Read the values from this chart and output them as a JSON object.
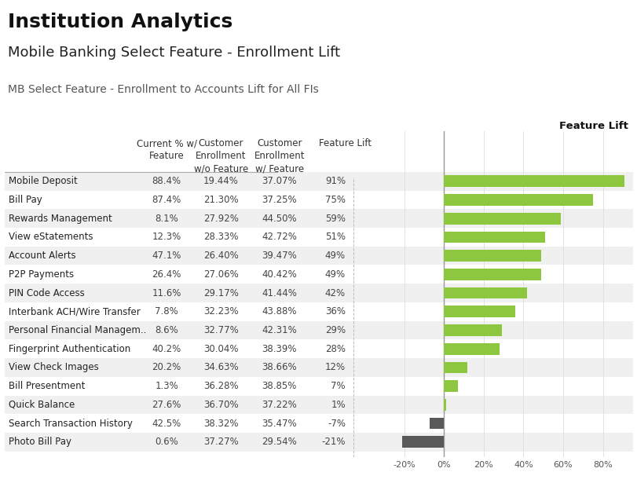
{
  "title": "Institution Analytics",
  "subtitle": "Mobile Banking Select Feature - Enrollment Lift",
  "section_label": "MB Select Feature - Enrollment to Accounts Lift for All FIs",
  "col_headers": [
    "Current % w/\nFeature",
    "Customer\nEnrollment\nw/o Feature",
    "Customer\nEnrollment\nw/ Feature",
    "Feature Lift"
  ],
  "features": [
    "Mobile Deposit",
    "Bill Pay",
    "Rewards Management",
    "View eStatements",
    "Account Alerts",
    "P2P Payments",
    "PIN Code Access",
    "Interbank ACH/Wire Transfer",
    "Personal Financial Managem..",
    "Fingerprint Authentication",
    "View Check Images",
    "Bill Presentment",
    "Quick Balance",
    "Search Transaction History",
    "Photo Bill Pay"
  ],
  "current_pct": [
    "88.4%",
    "87.4%",
    "8.1%",
    "12.3%",
    "47.1%",
    "26.4%",
    "11.6%",
    "7.8%",
    "8.6%",
    "40.2%",
    "20.2%",
    "1.3%",
    "27.6%",
    "42.5%",
    "0.6%"
  ],
  "enroll_without": [
    "19.44%",
    "21.30%",
    "27.92%",
    "28.33%",
    "26.40%",
    "27.06%",
    "29.17%",
    "32.23%",
    "32.77%",
    "30.04%",
    "34.63%",
    "36.28%",
    "36.70%",
    "38.32%",
    "37.27%"
  ],
  "enroll_with": [
    "37.07%",
    "37.25%",
    "44.50%",
    "42.72%",
    "39.47%",
    "40.42%",
    "41.44%",
    "43.88%",
    "42.31%",
    "38.39%",
    "38.66%",
    "38.85%",
    "37.22%",
    "35.47%",
    "29.54%"
  ],
  "feature_lift_labels": [
    "91%",
    "75%",
    "59%",
    "51%",
    "49%",
    "49%",
    "42%",
    "36%",
    "29%",
    "28%",
    "12%",
    "7%",
    "1%",
    "-7%",
    "-21%"
  ],
  "feature_lift_values": [
    91,
    75,
    59,
    51,
    49,
    49,
    42,
    36,
    29,
    28,
    12,
    7,
    1,
    -7,
    -21
  ],
  "bar_color_positive": "#8dc63f",
  "bar_color_negative": "#595959",
  "xlim": [
    -25,
    95
  ],
  "xticks": [
    -20,
    0,
    20,
    40,
    60,
    80
  ],
  "xtick_labels": [
    "-20%",
    "0%",
    "20%",
    "40%",
    "60%",
    "80%"
  ],
  "chart_title": "Feature Lift",
  "background_color": "#ffffff",
  "row_alt_color": "#f0f0f0",
  "row_normal_color": "#ffffff",
  "title_fontsize": 18,
  "subtitle_fontsize": 13,
  "section_fontsize": 10,
  "table_fontsize": 8.5,
  "header_fontsize": 8.5
}
